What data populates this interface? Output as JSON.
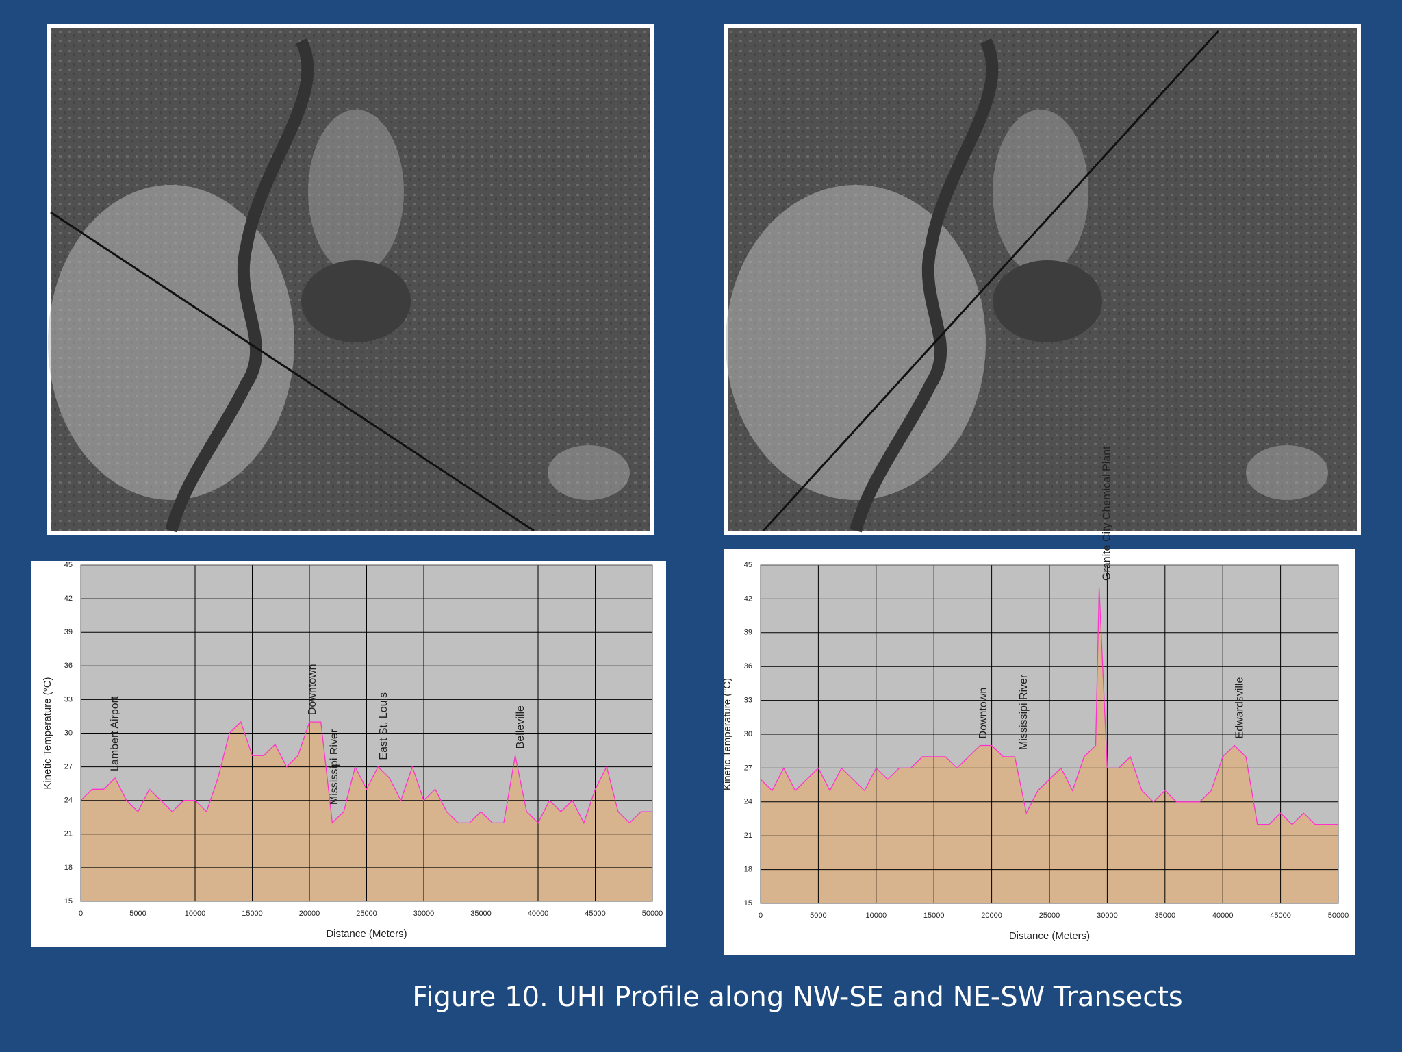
{
  "caption": "Figure 10.  UHI Profile along NW-SE and NE-SW Transects",
  "chart_data": [
    {
      "type": "area",
      "xlabel": "Distance (Meters)",
      "ylabel": "Kinetic Temperature (°C)",
      "x": [
        0,
        1000,
        2000,
        3000,
        4000,
        5000,
        6000,
        7000,
        8000,
        9000,
        10000,
        11000,
        12000,
        13000,
        14000,
        15000,
        16000,
        17000,
        18000,
        19000,
        20000,
        21000,
        22000,
        23000,
        24000,
        25000,
        26000,
        27000,
        28000,
        29000,
        30000,
        31000,
        32000,
        33000,
        34000,
        35000,
        36000,
        37000,
        38000,
        39000,
        40000,
        41000,
        42000,
        43000,
        44000,
        45000,
        46000,
        47000,
        48000,
        49000,
        50000
      ],
      "values": [
        24,
        25,
        25,
        26,
        24,
        23,
        25,
        24,
        23,
        24,
        24,
        23,
        26,
        30,
        31,
        28,
        28,
        29,
        27,
        28,
        31,
        31,
        22,
        23,
        27,
        25,
        27,
        26,
        24,
        27,
        24,
        25,
        23,
        22,
        22,
        23,
        22,
        22,
        28,
        23,
        22,
        24,
        23,
        24,
        22,
        25,
        27,
        23,
        22,
        23,
        23
      ],
      "color": "#d7b48e",
      "line_color": "#ff33cc",
      "plot_background": "#c0c0c0",
      "grid": true,
      "xlim": [
        0,
        50000
      ],
      "xticks": [
        0,
        5000,
        10000,
        15000,
        20000,
        25000,
        30000,
        35000,
        40000,
        45000,
        50000
      ],
      "ylim": [
        15,
        45
      ],
      "yticks": [
        15,
        18,
        21,
        24,
        27,
        30,
        33,
        36,
        39,
        42,
        45
      ],
      "annotations": [
        {
          "text": "Lambert Airport",
          "x": 3000
        },
        {
          "text": "Downtown",
          "x": 20300
        },
        {
          "text": "Mississipi River",
          "x": 22200
        },
        {
          "text": "East St. Louis",
          "x": 26500
        },
        {
          "text": "Belleville",
          "x": 38500
        }
      ]
    },
    {
      "type": "area",
      "xlabel": "Distance (Meters)",
      "ylabel": "Kinetic Temperature (°C)",
      "x": [
        0,
        1000,
        2000,
        3000,
        4000,
        5000,
        6000,
        7000,
        8000,
        9000,
        10000,
        11000,
        12000,
        13000,
        14000,
        15000,
        16000,
        17000,
        18000,
        19000,
        20000,
        21000,
        22000,
        23000,
        24000,
        25000,
        26000,
        27000,
        28000,
        29000,
        29300,
        30000,
        31000,
        32000,
        33000,
        34000,
        35000,
        36000,
        37000,
        38000,
        39000,
        40000,
        41000,
        42000,
        43000,
        44000,
        45000,
        46000,
        47000,
        48000,
        49000,
        50000
      ],
      "values": [
        26,
        25,
        27,
        25,
        26,
        27,
        25,
        27,
        26,
        25,
        27,
        26,
        27,
        27,
        28,
        28,
        28,
        27,
        28,
        29,
        29,
        28,
        28,
        23,
        25,
        26,
        27,
        25,
        28,
        29,
        43,
        27,
        27,
        28,
        25,
        24,
        25,
        24,
        24,
        24,
        25,
        28,
        29,
        28,
        22,
        22,
        23,
        22,
        23,
        22,
        22,
        22
      ],
      "color": "#d7b48e",
      "line_color": "#ff33cc",
      "plot_background": "#c0c0c0",
      "grid": true,
      "xlim": [
        0,
        50000
      ],
      "xticks": [
        0,
        5000,
        10000,
        15000,
        20000,
        25000,
        30000,
        35000,
        40000,
        45000,
        50000
      ],
      "ylim": [
        15,
        45
      ],
      "yticks": [
        15,
        18,
        21,
        24,
        27,
        30,
        33,
        36,
        39,
        42,
        45
      ],
      "annotations": [
        {
          "text": "Downtown",
          "x": 19300
        },
        {
          "text": "Mississipi River",
          "x": 22800
        },
        {
          "text": "Granite City Chemical Plant",
          "x": 30000
        },
        {
          "text": "Edwardsville",
          "x": 41500
        }
      ]
    }
  ]
}
